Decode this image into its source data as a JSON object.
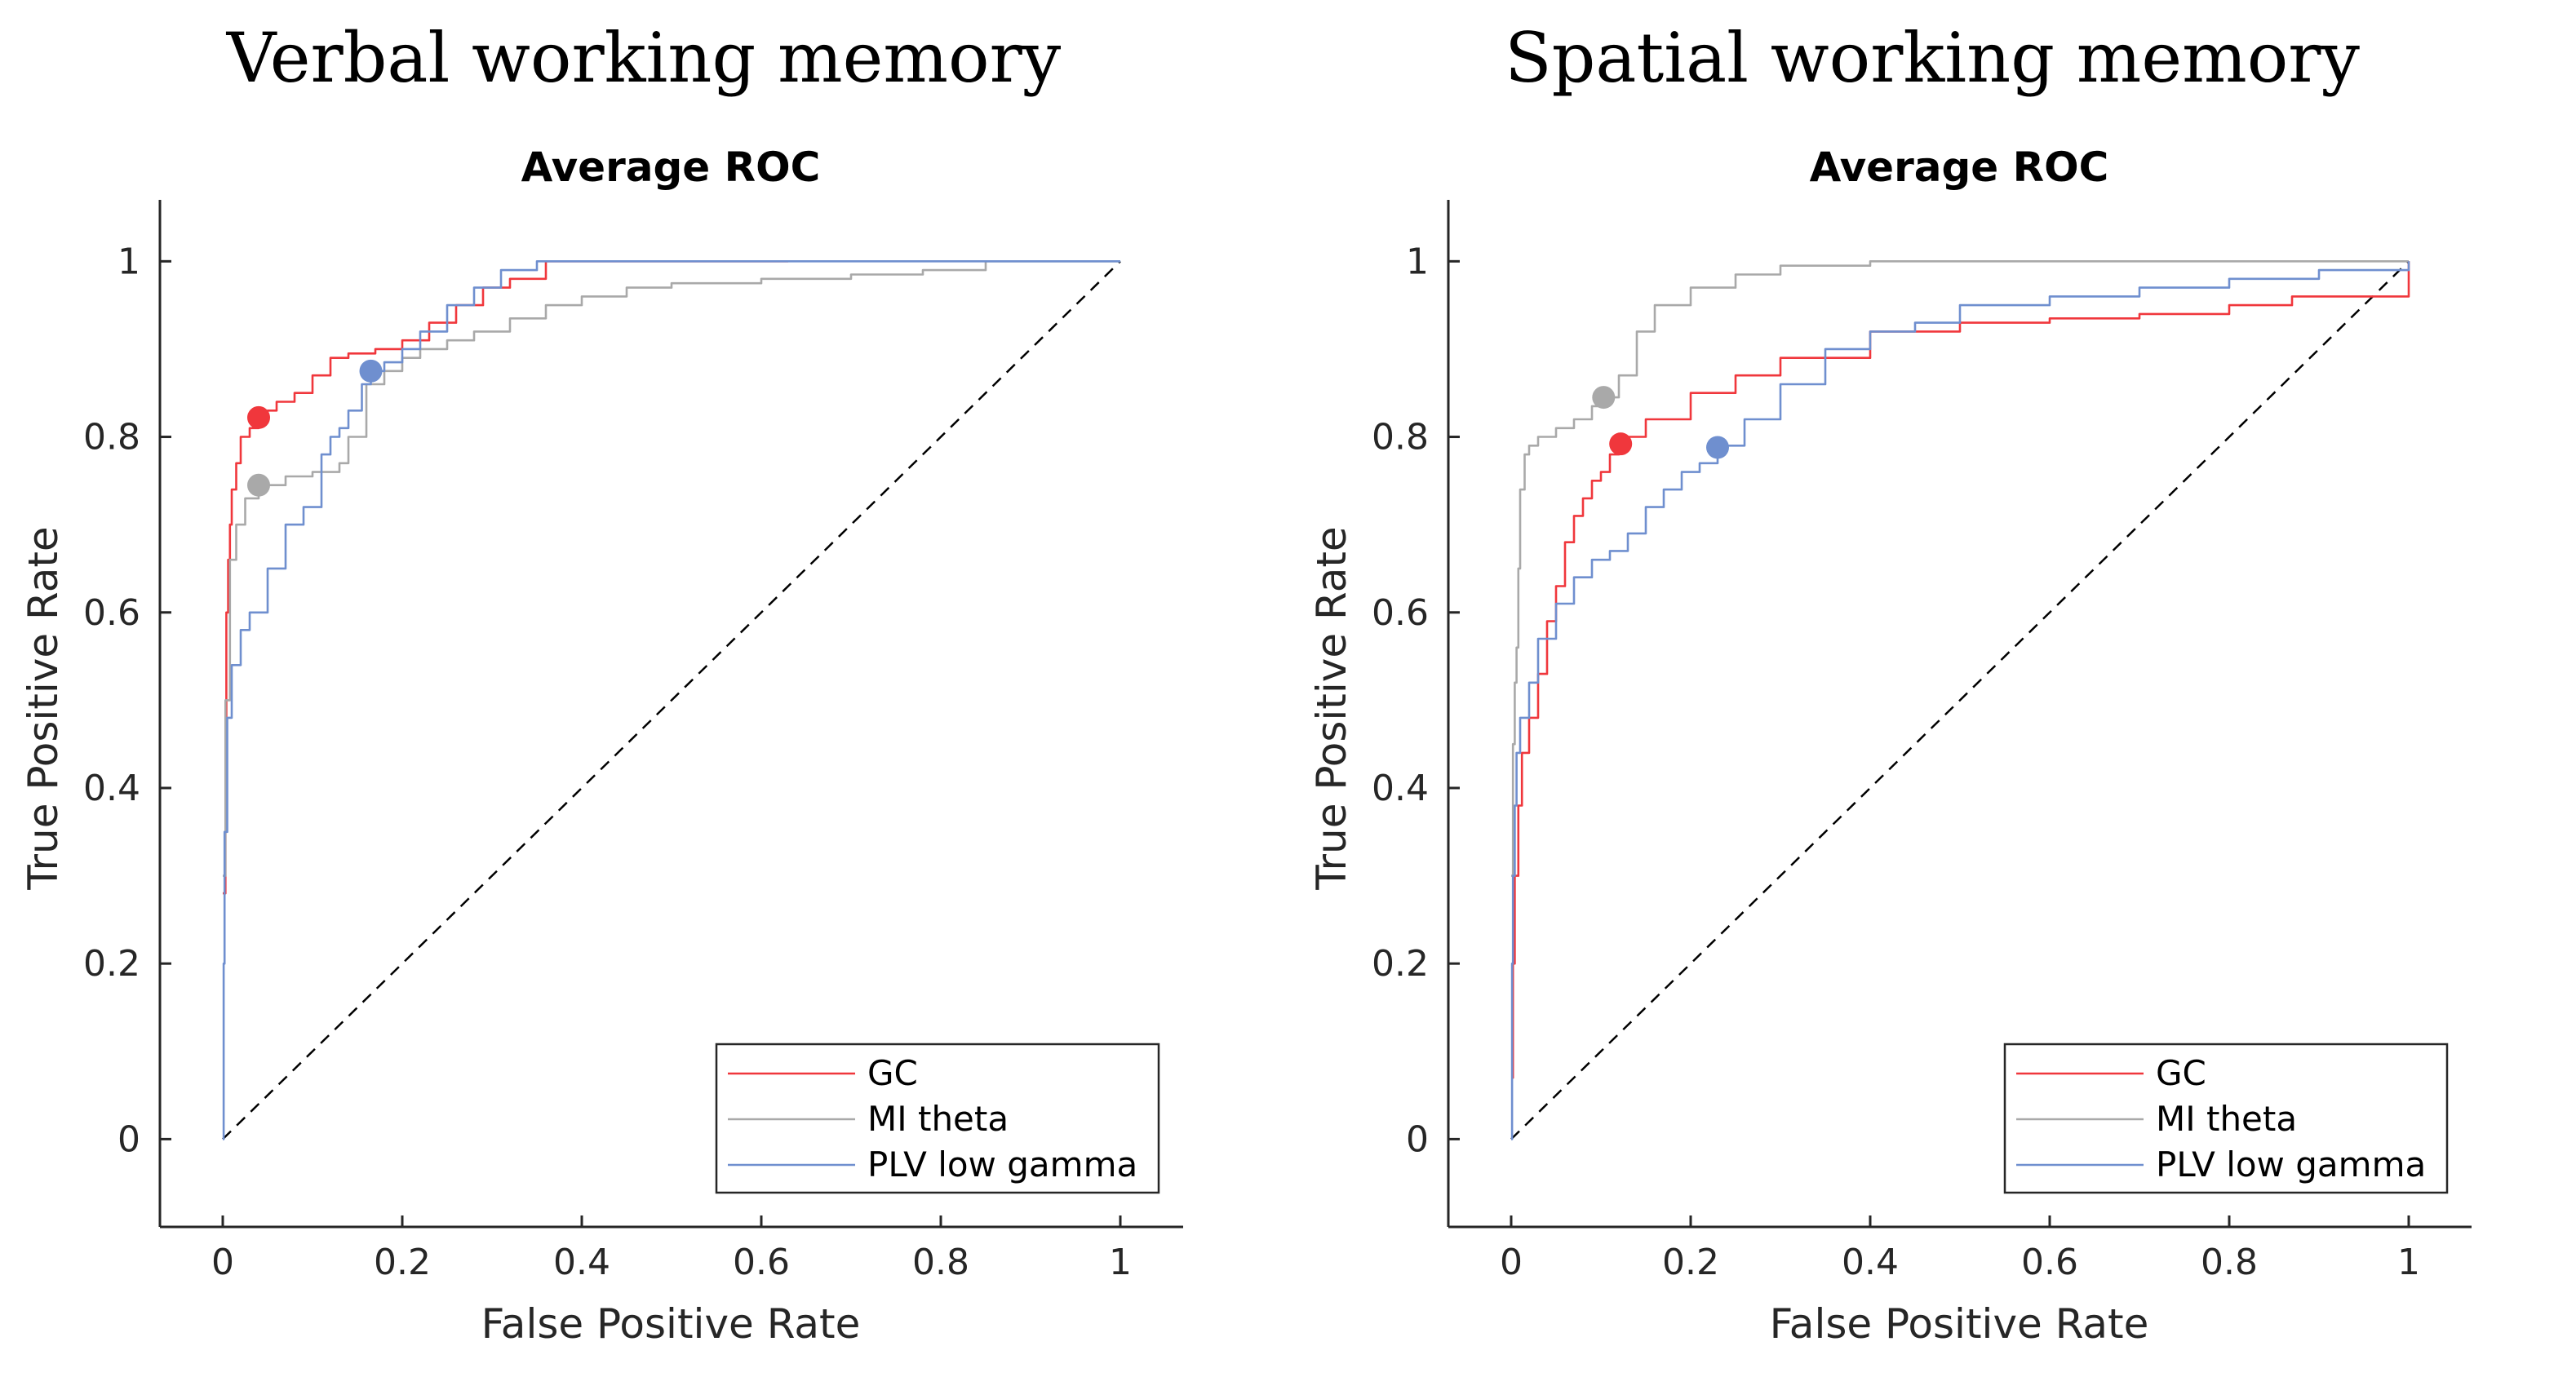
{
  "panels": [
    {
      "heading": "Verbal working memory"
    },
    {
      "heading": "Spatial working memory"
    }
  ],
  "chart_data": [
    {
      "type": "line",
      "title": "Average ROC",
      "xlabel": "False Positive Rate",
      "ylabel": "True Positive Rate",
      "xlim": [
        -0.07,
        1.07
      ],
      "ylim": [
        -0.1,
        1.07
      ],
      "xticks": [
        0,
        0.2,
        0.4,
        0.6,
        0.8,
        1
      ],
      "yticks": [
        0,
        0.2,
        0.4,
        0.6,
        0.8,
        1
      ],
      "legend_position": "bottom-right",
      "series": [
        {
          "name": "GC",
          "color": "#f0373c",
          "x": [
            0,
            0.003,
            0.004,
            0.006,
            0.008,
            0.01,
            0.015,
            0.02,
            0.03,
            0.04,
            0.05,
            0.06,
            0.08,
            0.1,
            0.12,
            0.14,
            0.17,
            0.2,
            0.23,
            0.26,
            0.29,
            0.32,
            0.36,
            0.42,
            0.5,
            0.63
          ],
          "y": [
            0.28,
            0.45,
            0.6,
            0.66,
            0.7,
            0.74,
            0.77,
            0.8,
            0.81,
            0.82,
            0.83,
            0.84,
            0.85,
            0.87,
            0.89,
            0.895,
            0.9,
            0.91,
            0.93,
            0.95,
            0.97,
            0.98,
            1.0,
            1.0,
            1.0,
            1.0
          ],
          "operating_point": [
            0.04,
            0.822
          ]
        },
        {
          "name": "MI theta",
          "color": "#a9a9a9",
          "x": [
            0,
            0.003,
            0.008,
            0.015,
            0.025,
            0.04,
            0.07,
            0.1,
            0.13,
            0.14,
            0.16,
            0.18,
            0.2,
            0.22,
            0.25,
            0.28,
            0.32,
            0.36,
            0.4,
            0.45,
            0.5,
            0.6,
            0.7,
            0.78,
            0.85,
            1.0
          ],
          "y": [
            0.3,
            0.5,
            0.66,
            0.7,
            0.73,
            0.745,
            0.755,
            0.76,
            0.77,
            0.8,
            0.86,
            0.875,
            0.89,
            0.9,
            0.91,
            0.92,
            0.935,
            0.95,
            0.96,
            0.97,
            0.975,
            0.98,
            0.985,
            0.99,
            1.0,
            1.0
          ],
          "operating_point": [
            0.04,
            0.745
          ]
        },
        {
          "name": "PLV low gamma",
          "color": "#6f8fcf",
          "x": [
            0,
            0.001,
            0.002,
            0.005,
            0.01,
            0.02,
            0.03,
            0.05,
            0.07,
            0.09,
            0.11,
            0.12,
            0.13,
            0.14,
            0.155,
            0.165,
            0.18,
            0.2,
            0.22,
            0.25,
            0.28,
            0.31,
            0.35,
            0.4,
            0.5,
            0.7,
            1.0
          ],
          "y": [
            0,
            0.2,
            0.35,
            0.48,
            0.54,
            0.58,
            0.6,
            0.65,
            0.7,
            0.72,
            0.78,
            0.8,
            0.81,
            0.83,
            0.86,
            0.875,
            0.885,
            0.9,
            0.92,
            0.95,
            0.97,
            0.99,
            1.0,
            1.0,
            1.0,
            1.0,
            1.0
          ],
          "operating_point": [
            0.165,
            0.875
          ]
        }
      ]
    },
    {
      "type": "line",
      "title": "Average ROC",
      "xlabel": "False Positive Rate",
      "ylabel": "True Positive Rate",
      "xlim": [
        -0.07,
        1.07
      ],
      "ylim": [
        -0.1,
        1.07
      ],
      "xticks": [
        0,
        0.2,
        0.4,
        0.6,
        0.8,
        1
      ],
      "yticks": [
        0,
        0.2,
        0.4,
        0.6,
        0.8,
        1
      ],
      "legend_position": "bottom-right",
      "series": [
        {
          "name": "GC",
          "color": "#f0373c",
          "x": [
            0,
            0.002,
            0.004,
            0.008,
            0.012,
            0.02,
            0.03,
            0.04,
            0.05,
            0.06,
            0.07,
            0.08,
            0.09,
            0.1,
            0.11,
            0.12,
            0.13,
            0.15,
            0.2,
            0.25,
            0.3,
            0.4,
            0.5,
            0.6,
            0.7,
            0.8,
            0.87,
            1.0
          ],
          "y": [
            0.07,
            0.2,
            0.3,
            0.38,
            0.44,
            0.48,
            0.53,
            0.59,
            0.63,
            0.68,
            0.71,
            0.73,
            0.75,
            0.76,
            0.78,
            0.79,
            0.8,
            0.82,
            0.85,
            0.87,
            0.89,
            0.92,
            0.93,
            0.935,
            0.94,
            0.95,
            0.96,
            1.0
          ],
          "operating_point": [
            0.122,
            0.792
          ]
        },
        {
          "name": "MI theta",
          "color": "#a9a9a9",
          "x": [
            0,
            0.002,
            0.004,
            0.006,
            0.008,
            0.01,
            0.015,
            0.02,
            0.03,
            0.05,
            0.07,
            0.09,
            0.1,
            0.12,
            0.14,
            0.16,
            0.2,
            0.25,
            0.3,
            0.4,
            0.5,
            0.6,
            0.75,
            0.85,
            1.0
          ],
          "y": [
            0.3,
            0.45,
            0.52,
            0.56,
            0.65,
            0.74,
            0.78,
            0.79,
            0.8,
            0.81,
            0.82,
            0.835,
            0.845,
            0.87,
            0.92,
            0.95,
            0.97,
            0.985,
            0.995,
            1.0,
            1.0,
            1.0,
            1.0,
            1.0,
            1.0
          ],
          "operating_point": [
            0.103,
            0.845
          ]
        },
        {
          "name": "PLV low gamma",
          "color": "#6f8fcf",
          "x": [
            0,
            0.001,
            0.002,
            0.004,
            0.006,
            0.01,
            0.02,
            0.03,
            0.05,
            0.07,
            0.09,
            0.11,
            0.13,
            0.15,
            0.17,
            0.19,
            0.21,
            0.23,
            0.26,
            0.3,
            0.35,
            0.4,
            0.45,
            0.5,
            0.6,
            0.7,
            0.8,
            0.9,
            1.0
          ],
          "y": [
            0,
            0.2,
            0.3,
            0.38,
            0.44,
            0.48,
            0.52,
            0.57,
            0.61,
            0.64,
            0.66,
            0.67,
            0.69,
            0.72,
            0.74,
            0.76,
            0.77,
            0.79,
            0.82,
            0.86,
            0.9,
            0.92,
            0.93,
            0.95,
            0.96,
            0.97,
            0.98,
            0.99,
            1.0
          ],
          "operating_point": [
            0.23,
            0.788
          ]
        }
      ]
    }
  ]
}
